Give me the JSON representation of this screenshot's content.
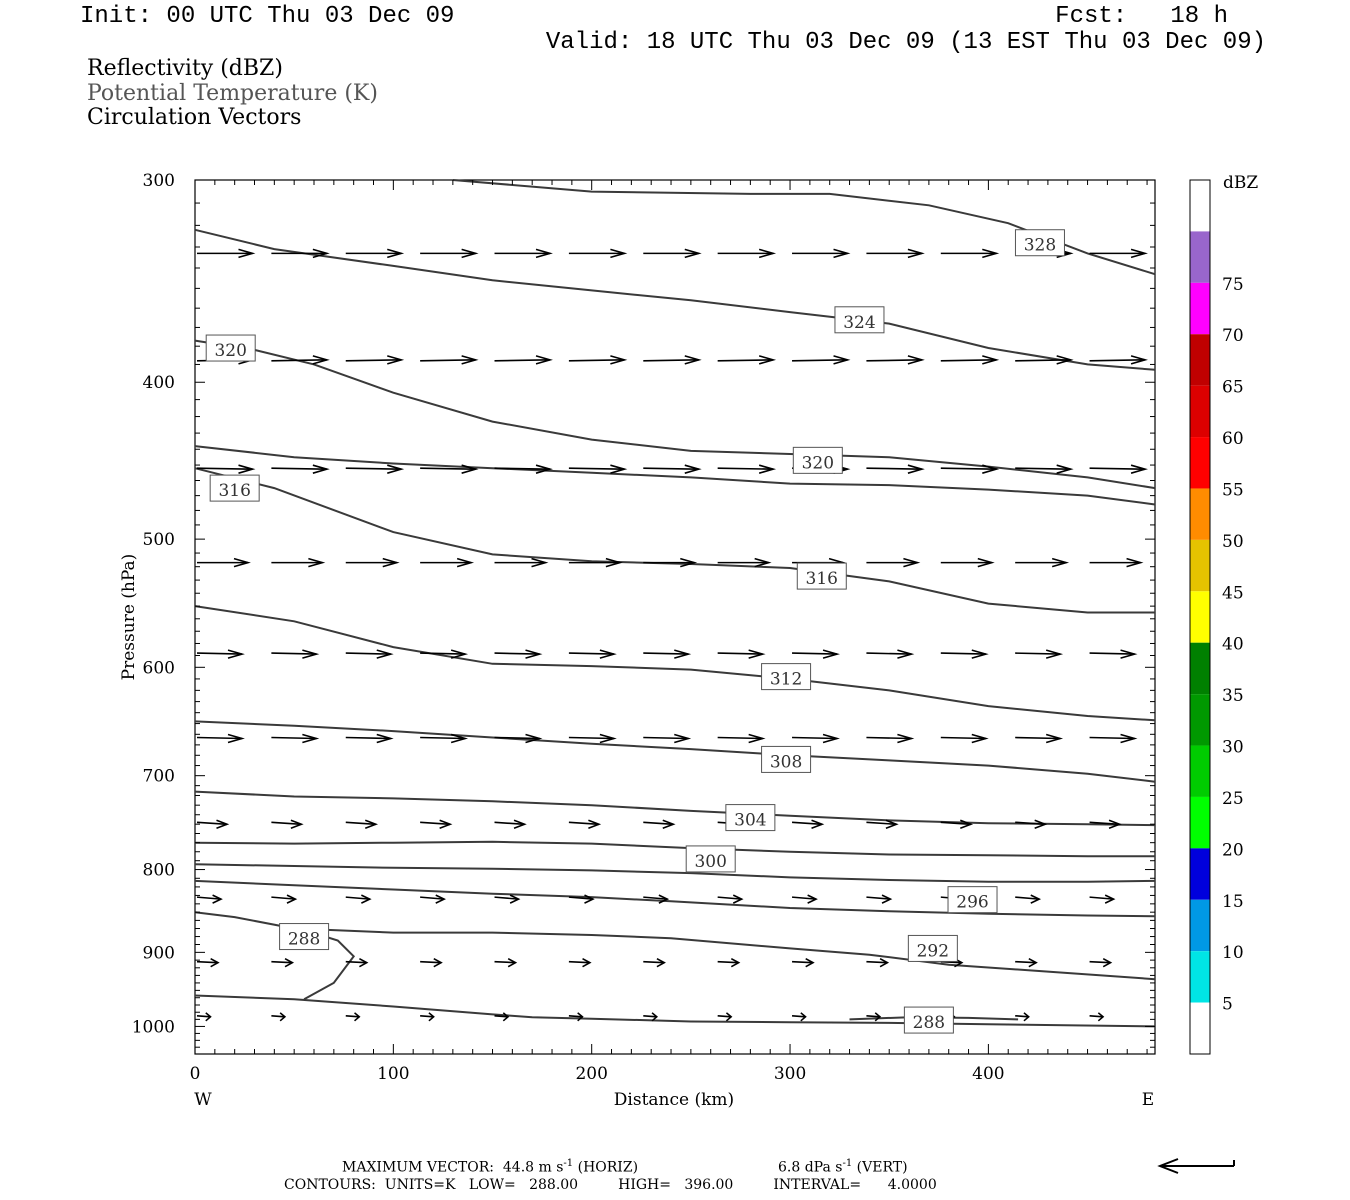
{
  "header": {
    "init": "Init: 00 UTC Thu 03 Dec 09",
    "fcst": "Fcst:   18 h",
    "valid": "Valid: 18 UTC Thu 03 Dec 09 (13 EST Thu 03 Dec 09)"
  },
  "legend": {
    "line1": "Reflectivity (dBZ)",
    "line2": "Potential Temperature (K)",
    "line3": "Circulation Vectors"
  },
  "footer": {
    "line1": "MAXIMUM VECTOR:  44.8 m s",
    "line1_sup": "-1",
    "line1_b": " (HORIZ)",
    "line1_c": "6.8 dPa s",
    "line1_c_sup": "-1",
    "line1_d": " (VERT)",
    "line2": "CONTOURS:  UNITS=K   LOW=   288.00         HIGH=   396.00         INTERVAL=      4.0000"
  },
  "colors": {
    "contour": "#3a3a3a",
    "vector": "#000000",
    "colorbar": [
      "#ffffff",
      "#00e5e5",
      "#0099e5",
      "#0000dd",
      "#00ff00",
      "#00cc00",
      "#009900",
      "#008000",
      "#ffff00",
      "#e5c300",
      "#ff8c00",
      "#ff0000",
      "#dd0000",
      "#c00000",
      "#ff00ff",
      "#9966cc",
      "#ffffff"
    ]
  },
  "chart_data": {
    "type": "cross-section",
    "xlabel": "Distance (km)",
    "ylabel": "Pressure (hPa)",
    "xlim": [
      0,
      484
    ],
    "ylim": [
      1040,
      300
    ],
    "y_log": true,
    "xticks": [
      0,
      100,
      200,
      300,
      400
    ],
    "yticks": [
      300,
      400,
      500,
      600,
      700,
      800,
      900,
      1000
    ],
    "x_end_labels": {
      "left": "W",
      "right": "E"
    },
    "colorbar": {
      "unit": "dBZ",
      "levels": [
        5,
        10,
        15,
        20,
        25,
        30,
        35,
        40,
        45,
        50,
        55,
        60,
        65,
        70,
        75
      ]
    },
    "theta_contours": [
      {
        "label": "288",
        "label_at": [
          55,
          880
        ],
        "points": [
          [
            0,
            957
          ],
          [
            50,
            962
          ],
          [
            100,
            972
          ],
          [
            150,
            983
          ],
          [
            170,
            987
          ],
          [
            200,
            989
          ],
          [
            250,
            993
          ],
          [
            300,
            994
          ],
          [
            350,
            995
          ],
          [
            400,
            997
          ],
          [
            484,
            1000
          ]
        ]
      },
      {
        "label": "288",
        "label_at": [
          370,
          991
        ],
        "points": [
          [
            55,
            962
          ],
          [
            70,
            940
          ],
          [
            80,
            905
          ],
          [
            72,
            885
          ],
          [
            55,
            872
          ]
        ]
      },
      {
        "label": "288",
        "label_at": [
          370,
          991
        ],
        "points": [
          [
            330,
            990
          ],
          [
            360,
            987
          ],
          [
            390,
            988
          ],
          [
            415,
            990
          ]
        ]
      },
      {
        "label": "292",
        "label_at": [
          372,
          895
        ],
        "points": [
          [
            0,
            850
          ],
          [
            20,
            856
          ],
          [
            50,
            870
          ],
          [
            100,
            875
          ],
          [
            150,
            875
          ],
          [
            200,
            878
          ],
          [
            240,
            882
          ],
          [
            300,
            895
          ],
          [
            340,
            903
          ],
          [
            380,
            916
          ],
          [
            430,
            925
          ],
          [
            484,
            935
          ]
        ]
      },
      {
        "label": "296",
        "label_at": [
          392,
          835
        ],
        "points": [
          [
            0,
            813
          ],
          [
            50,
            818
          ],
          [
            100,
            823
          ],
          [
            150,
            828
          ],
          [
            200,
            832
          ],
          [
            240,
            837
          ],
          [
            300,
            845
          ],
          [
            350,
            849
          ],
          [
            400,
            852
          ],
          [
            450,
            854
          ],
          [
            484,
            855
          ]
        ]
      },
      {
        "label": "300",
        "label_at": [
          260,
          788
        ],
        "points": [
          [
            0,
            794
          ],
          [
            50,
            796
          ],
          [
            100,
            798
          ],
          [
            150,
            799
          ],
          [
            200,
            801
          ],
          [
            250,
            804
          ],
          [
            300,
            809
          ],
          [
            350,
            812
          ],
          [
            400,
            814
          ],
          [
            450,
            814
          ],
          [
            484,
            813
          ]
        ]
      },
      {
        "label": "304",
        "label_at": [
          280,
          743
        ],
        "points": [
          [
            0,
            770
          ],
          [
            50,
            771
          ],
          [
            100,
            770
          ],
          [
            150,
            769
          ],
          [
            200,
            771
          ],
          [
            250,
            776
          ],
          [
            300,
            780
          ],
          [
            350,
            783
          ],
          [
            400,
            784
          ],
          [
            450,
            785
          ],
          [
            484,
            785
          ]
        ]
      },
      {
        "label": "308",
        "label_at": [
          298,
          684
        ],
        "points": [
          [
            0,
            716
          ],
          [
            50,
            721
          ],
          [
            100,
            723
          ],
          [
            150,
            726
          ],
          [
            200,
            730
          ],
          [
            250,
            736
          ],
          [
            300,
            741
          ],
          [
            350,
            746
          ],
          [
            400,
            749
          ],
          [
            450,
            750
          ],
          [
            484,
            751
          ]
        ]
      },
      {
        "label": "312",
        "label_at": [
          298,
          608
        ],
        "points": [
          [
            0,
            648
          ],
          [
            50,
            652
          ],
          [
            100,
            657
          ],
          [
            150,
            663
          ],
          [
            200,
            669
          ],
          [
            250,
            674
          ],
          [
            300,
            680
          ],
          [
            350,
            685
          ],
          [
            400,
            690
          ],
          [
            450,
            698
          ],
          [
            484,
            706
          ]
        ]
      },
      {
        "label": "316",
        "label_at": [
          316,
          527
        ],
        "points": [
          [
            0,
            550
          ],
          [
            50,
            562
          ],
          [
            100,
            583
          ],
          [
            150,
            597
          ],
          [
            200,
            599
          ],
          [
            250,
            602
          ],
          [
            300,
            610
          ],
          [
            350,
            620
          ],
          [
            400,
            634
          ],
          [
            450,
            643
          ],
          [
            484,
            647
          ]
        ]
      },
      {
        "label": "316",
        "label_at": [
          20,
          465
        ],
        "points": [
          [
            0,
            452
          ],
          [
            40,
            465
          ],
          [
            100,
            495
          ],
          [
            150,
            511
          ],
          [
            200,
            516
          ],
          [
            250,
            518
          ],
          [
            300,
            521
          ],
          [
            350,
            531
          ],
          [
            400,
            548
          ],
          [
            450,
            555
          ],
          [
            484,
            555
          ]
        ]
      },
      {
        "label": "320",
        "label_at": [
          314,
          447
        ],
        "points": [
          [
            0,
            438
          ],
          [
            50,
            445
          ],
          [
            100,
            449
          ],
          [
            150,
            452
          ],
          [
            200,
            455
          ],
          [
            250,
            458
          ],
          [
            300,
            462
          ],
          [
            350,
            463
          ],
          [
            400,
            466
          ],
          [
            450,
            470
          ],
          [
            484,
            476
          ]
        ]
      },
      {
        "label": "320",
        "label_at": [
          18,
          381
        ],
        "points": [
          [
            0,
            377
          ],
          [
            30,
            382
          ],
          [
            60,
            390
          ],
          [
            100,
            406
          ],
          [
            150,
            423
          ],
          [
            200,
            434
          ],
          [
            250,
            441
          ],
          [
            300,
            443
          ],
          [
            350,
            445
          ],
          [
            400,
            451
          ],
          [
            450,
            458
          ],
          [
            484,
            465
          ]
        ]
      },
      {
        "label": "324",
        "label_at": [
          335,
          366
        ],
        "points": [
          [
            0,
            322
          ],
          [
            40,
            331
          ],
          [
            100,
            339
          ],
          [
            150,
            346
          ],
          [
            200,
            351
          ],
          [
            250,
            356
          ],
          [
            300,
            362
          ],
          [
            350,
            368
          ],
          [
            400,
            381
          ],
          [
            450,
            390
          ],
          [
            484,
            393
          ]
        ]
      },
      {
        "label": "328",
        "label_at": [
          426,
          328
        ],
        "points": [
          [
            130,
            300
          ],
          [
            200,
            305
          ],
          [
            280,
            306
          ],
          [
            320,
            306
          ],
          [
            370,
            311
          ],
          [
            410,
            319
          ],
          [
            450,
            333
          ],
          [
            484,
            343
          ]
        ]
      }
    ],
    "vector_rows": [
      {
        "p": 333,
        "x0": 0,
        "dx": 37.5,
        "n": 13,
        "u": 37,
        "w": 0
      },
      {
        "p": 388,
        "x0": 0,
        "dx": 37.5,
        "n": 13,
        "u": 37,
        "w": -1
      },
      {
        "p": 452,
        "x0": 0,
        "dx": 37.5,
        "n": 13,
        "u": 37,
        "w": 1
      },
      {
        "p": 517,
        "x0": 0,
        "dx": 37.5,
        "n": 13,
        "u": 34,
        "w": 0
      },
      {
        "p": 588,
        "x0": 0,
        "dx": 37.5,
        "n": 13,
        "u": 30,
        "w": 1
      },
      {
        "p": 663,
        "x0": 0,
        "dx": 37.5,
        "n": 13,
        "u": 30,
        "w": 1
      },
      {
        "p": 748,
        "x0": 0,
        "dx": 37.5,
        "n": 13,
        "u": 20,
        "w": 2
      },
      {
        "p": 832,
        "x0": 0,
        "dx": 37.5,
        "n": 13,
        "u": 16,
        "w": 2
      },
      {
        "p": 912,
        "x0": 0,
        "dx": 37.5,
        "n": 13,
        "u": 14,
        "w": 1
      },
      {
        "p": 985,
        "x0": 0,
        "dx": 37.5,
        "n": 13,
        "u": 9,
        "w": 1
      }
    ]
  }
}
